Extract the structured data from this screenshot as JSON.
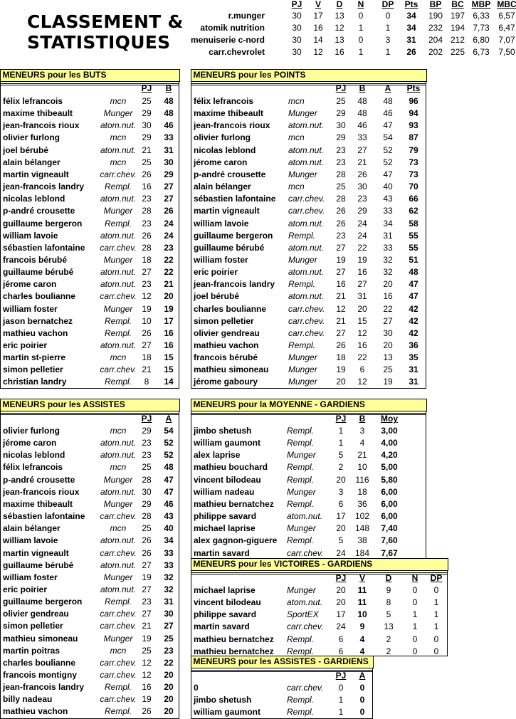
{
  "title": [
    "CLASSEMENT &",
    "STATISTIQUES"
  ],
  "standings": {
    "headers": [
      "PJ",
      "V",
      "D",
      "N",
      "DP",
      "Pts",
      "BP",
      "BC",
      "MBP",
      "MBC"
    ],
    "rows": [
      [
        "r.munger",
        "30",
        "17",
        "13",
        "0",
        "0",
        "34",
        "190",
        "197",
        "6,33",
        "6,57"
      ],
      [
        "atomik nutrition",
        "30",
        "16",
        "12",
        "1",
        "1",
        "34",
        "232",
        "194",
        "7,73",
        "6,47"
      ],
      [
        "menuiserie c-nord",
        "30",
        "14",
        "13",
        "0",
        "3",
        "31",
        "204",
        "212",
        "6,80",
        "7,07"
      ],
      [
        "carr.chevrolet",
        "30",
        "12",
        "16",
        "1",
        "1",
        "26",
        "202",
        "225",
        "6,73",
        "7,50"
      ]
    ]
  },
  "panels": {
    "buts": {
      "title": "MENEURS pour les BUTS",
      "headers": [
        "PJ",
        "B"
      ],
      "rows": [
        [
          "félix lefrancois",
          "mcn",
          "25",
          "48"
        ],
        [
          "maxime thibeault",
          "Munger",
          "29",
          "48"
        ],
        [
          "jean-francois rioux",
          "atom.nut.",
          "30",
          "46"
        ],
        [
          "olivier furlong",
          "mcn",
          "29",
          "33"
        ],
        [
          "joel bérubé",
          "atom.nut.",
          "21",
          "31"
        ],
        [
          "alain bélanger",
          "mcn",
          "25",
          "30"
        ],
        [
          "martin vigneault",
          "carr.chev.",
          "26",
          "29"
        ],
        [
          "jean-francois landry",
          "Rempl.",
          "16",
          "27"
        ],
        [
          "nicolas leblond",
          "atom.nut.",
          "23",
          "27"
        ],
        [
          "p-andré crousette",
          "Munger",
          "28",
          "26"
        ],
        [
          "guillaume bergeron",
          "Rempl.",
          "23",
          "24"
        ],
        [
          "william lavoie",
          "atom.nut.",
          "26",
          "24"
        ],
        [
          "sébastien lafontaine",
          "carr.chev.",
          "28",
          "23"
        ],
        [
          "francois bérubé",
          "Munger",
          "18",
          "22"
        ],
        [
          "guillaume bérubé",
          "atom.nut.",
          "27",
          "22"
        ],
        [
          "jérome caron",
          "atom.nut.",
          "23",
          "21"
        ],
        [
          "charles boulianne",
          "carr.chev.",
          "12",
          "20"
        ],
        [
          "william foster",
          "Munger",
          "19",
          "19"
        ],
        [
          "jason bernatchez",
          "Rempl.",
          "10",
          "17"
        ],
        [
          "mathieu vachon",
          "Rempl.",
          "26",
          "16"
        ],
        [
          "eric poirier",
          "atom.nut.",
          "27",
          "16"
        ],
        [
          "martin st-pierre",
          "mcn",
          "18",
          "15"
        ],
        [
          "simon pelletier",
          "carr.chev.",
          "21",
          "15"
        ],
        [
          "christian landry",
          "Rempl.",
          "8",
          "14"
        ]
      ]
    },
    "points": {
      "title": "MENEURS pour les POINTS",
      "headers": [
        "PJ",
        "B",
        "A",
        "Pts"
      ],
      "rows": [
        [
          "félix lefrancois",
          "mcn",
          "25",
          "48",
          "48",
          "96"
        ],
        [
          "maxime thibeault",
          "Munger",
          "29",
          "48",
          "46",
          "94"
        ],
        [
          "jean-francois rioux",
          "atom.nut.",
          "30",
          "46",
          "47",
          "93"
        ],
        [
          "olivier furlong",
          "mcn",
          "29",
          "33",
          "54",
          "87"
        ],
        [
          "nicolas leblond",
          "atom.nut.",
          "23",
          "27",
          "52",
          "79"
        ],
        [
          "jérome caron",
          "atom.nut.",
          "23",
          "21",
          "52",
          "73"
        ],
        [
          "p-andré crousette",
          "Munger",
          "28",
          "26",
          "47",
          "73"
        ],
        [
          "alain bélanger",
          "mcn",
          "25",
          "30",
          "40",
          "70"
        ],
        [
          "sébastien lafontaine",
          "carr.chev.",
          "28",
          "23",
          "43",
          "66"
        ],
        [
          "martin vigneault",
          "carr.chev.",
          "26",
          "29",
          "33",
          "62"
        ],
        [
          "william lavoie",
          "atom.nut.",
          "26",
          "24",
          "34",
          "58"
        ],
        [
          "guillaume bergeron",
          "Rempl.",
          "23",
          "24",
          "31",
          "55"
        ],
        [
          "guillaume bérubé",
          "atom.nut.",
          "27",
          "22",
          "33",
          "55"
        ],
        [
          "william foster",
          "Munger",
          "19",
          "19",
          "32",
          "51"
        ],
        [
          "eric poirier",
          "atom.nut.",
          "27",
          "16",
          "32",
          "48"
        ],
        [
          "jean-francois landry",
          "Rempl.",
          "16",
          "27",
          "20",
          "47"
        ],
        [
          "joel bérubé",
          "atom.nut.",
          "21",
          "31",
          "16",
          "47"
        ],
        [
          "charles boulianne",
          "carr.chev.",
          "12",
          "20",
          "22",
          "42"
        ],
        [
          "simon pelletier",
          "carr.chev.",
          "21",
          "15",
          "27",
          "42"
        ],
        [
          "olivier gendreau",
          "carr.chev.",
          "27",
          "12",
          "30",
          "42"
        ],
        [
          "mathieu vachon",
          "Rempl.",
          "26",
          "16",
          "20",
          "36"
        ],
        [
          "francois bérubé",
          "Munger",
          "18",
          "22",
          "13",
          "35"
        ],
        [
          "mathieu simoneau",
          "Munger",
          "19",
          "6",
          "25",
          "31"
        ],
        [
          "jérome gaboury",
          "Munger",
          "20",
          "12",
          "19",
          "31"
        ]
      ]
    },
    "assists": {
      "title": "MENEURS pour les ASSISTES",
      "headers": [
        "PJ",
        "A"
      ],
      "rows": [
        [
          "olivier furlong",
          "mcn",
          "29",
          "54"
        ],
        [
          "jérome caron",
          "atom.nut.",
          "23",
          "52"
        ],
        [
          "nicolas leblond",
          "atom.nut.",
          "23",
          "52"
        ],
        [
          "félix lefrancois",
          "mcn",
          "25",
          "48"
        ],
        [
          "p-andré crousette",
          "Munger",
          "28",
          "47"
        ],
        [
          "jean-francois rioux",
          "atom.nut.",
          "30",
          "47"
        ],
        [
          "maxime thibeault",
          "Munger",
          "29",
          "46"
        ],
        [
          "sébastien lafontaine",
          "carr.chev.",
          "28",
          "43"
        ],
        [
          "alain bélanger",
          "mcn",
          "25",
          "40"
        ],
        [
          "william lavoie",
          "atom.nut.",
          "26",
          "34"
        ],
        [
          "martin vigneault",
          "carr.chev.",
          "26",
          "33"
        ],
        [
          "guillaume bérubé",
          "atom.nut.",
          "27",
          "33"
        ],
        [
          "william foster",
          "Munger",
          "19",
          "32"
        ],
        [
          "eric poirier",
          "atom.nut.",
          "27",
          "32"
        ],
        [
          "guillaume bergeron",
          "Rempl.",
          "23",
          "31"
        ],
        [
          "olivier gendreau",
          "carr.chev.",
          "27",
          "30"
        ],
        [
          "simon pelletier",
          "carr.chev.",
          "21",
          "27"
        ],
        [
          "mathieu simoneau",
          "Munger",
          "19",
          "25"
        ],
        [
          "martin poitras",
          "mcn",
          "25",
          "23"
        ],
        [
          "charles boulianne",
          "carr.chev.",
          "12",
          "22"
        ],
        [
          "francois montigny",
          "carr.chev.",
          "12",
          "20"
        ],
        [
          "jean-francois landry",
          "Rempl.",
          "16",
          "20"
        ],
        [
          "billy nadeau",
          "carr.chev.",
          "19",
          "20"
        ],
        [
          "mathieu vachon",
          "Rempl.",
          "26",
          "20"
        ]
      ]
    },
    "moyenne": {
      "title": "MENEURS pour la MOYENNE - GARDIENS",
      "headers": [
        "PJ",
        "B",
        "Moy"
      ],
      "rows": [
        [
          "jimbo shetush",
          "Rempl.",
          "1",
          "3",
          "3,00"
        ],
        [
          "william gaumont",
          "Rempl.",
          "1",
          "4",
          "4,00"
        ],
        [
          "alex laprise",
          "Munger",
          "5",
          "21",
          "4,20"
        ],
        [
          "mathieu bouchard",
          "Rempl.",
          "2",
          "10",
          "5,00"
        ],
        [
          "vincent bilodeau",
          "Rempl.",
          "20",
          "116",
          "5,80"
        ],
        [
          "william nadeau",
          "Munger",
          "3",
          "18",
          "6,00"
        ],
        [
          "mathieu bernatchez",
          "Rempl.",
          "6",
          "36",
          "6,00"
        ],
        [
          "philippe savard",
          "atom.nut.",
          "17",
          "102",
          "6,00"
        ],
        [
          "michael laprise",
          "Munger",
          "20",
          "148",
          "7,40"
        ],
        [
          "alex gagnon-giguere",
          "Rempl.",
          "5",
          "38",
          "7,60"
        ],
        [
          "martin savard",
          "carr.chev.",
          "24",
          "184",
          "7,67"
        ]
      ]
    },
    "victoires": {
      "title": "MENEURS pour les VICTOIRES - GARDIENS",
      "headers": [
        "PJ",
        "V",
        "D",
        "N",
        "DP"
      ],
      "rows": [
        [
          "michael laprise",
          "Munger",
          "20",
          "11",
          "9",
          "0",
          "0"
        ],
        [
          "vincent bilodeau",
          "atom.nut.",
          "20",
          "11",
          "8",
          "0",
          "1"
        ],
        [
          "philippe savard",
          "SportEX",
          "17",
          "10",
          "5",
          "1",
          "1"
        ],
        [
          "martin savard",
          "carr.chev.",
          "24",
          "9",
          "13",
          "1",
          "1"
        ],
        [
          "mathieu bernatchez",
          "Rempl.",
          "6",
          "4",
          "2",
          "0",
          "0"
        ],
        [
          "mathieu bernatchez",
          "Rempl.",
          "6",
          "4",
          "2",
          "0",
          "0"
        ]
      ]
    },
    "assistes_gardiens": {
      "title": "MENEURS pour les ASSISTES - GARDIENS",
      "headers": [
        "PJ",
        "A"
      ],
      "rows": [
        [
          "0",
          "carr.chev.",
          "0",
          "0"
        ],
        [
          "jimbo shetush",
          "Rempl.",
          "1",
          "0"
        ],
        [
          "william gaumont",
          "Rempl.",
          "1",
          "0"
        ]
      ]
    }
  },
  "colors": {
    "panel_header": "#ffff99",
    "border": "#000000"
  }
}
